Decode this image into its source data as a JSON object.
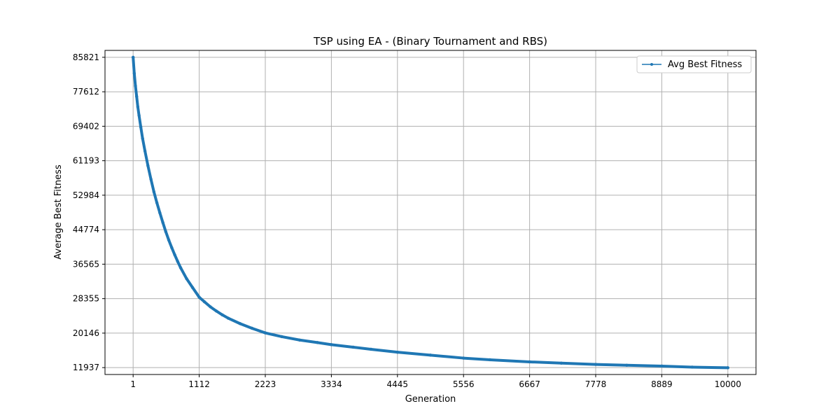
{
  "chart_data": {
    "type": "line",
    "title": "TSP using EA - (Binary Tournament and RBS)",
    "xlabel": "Generation",
    "ylabel": "Average Best Fitness",
    "xlim": [
      -472,
      10473
    ],
    "ylim": [
      10295,
      87463
    ],
    "xticks": [
      1,
      1112,
      2223,
      3334,
      4445,
      5556,
      6667,
      7778,
      8889,
      10000
    ],
    "xtick_labels": [
      "1",
      "1112",
      "2223",
      "3334",
      "4445",
      "5556",
      "6667",
      "7778",
      "8889",
      "10000"
    ],
    "yticks": [
      11937,
      20146,
      28355,
      36565,
      44774,
      52984,
      61193,
      69402,
      77612,
      85821
    ],
    "ytick_labels": [
      "11937",
      "20146",
      "28355",
      "36565",
      "44774",
      "52984",
      "61193",
      "69402",
      "77612",
      "85821"
    ],
    "grid": true,
    "legend_position": "upper-right",
    "colors": {
      "series": "#1f77b4",
      "grid": "#b0b0b0",
      "axes": "#000000"
    },
    "series": [
      {
        "name": "Avg Best Fitness",
        "marker": "dot",
        "x": [
          1,
          20,
          40,
          60,
          80,
          100,
          130,
          160,
          200,
          250,
          300,
          350,
          400,
          450,
          500,
          550,
          600,
          650,
          700,
          750,
          800,
          900,
          1000,
          1112,
          1200,
          1300,
          1400,
          1500,
          1600,
          1800,
          2000,
          2223,
          2500,
          2800,
          3100,
          3334,
          3700,
          4000,
          4445,
          5000,
          5556,
          6000,
          6667,
          7200,
          7778,
          8300,
          8889,
          9400,
          10000
        ],
        "y": [
          85821,
          82000,
          79000,
          76500,
          74000,
          72000,
          69200,
          66500,
          63500,
          60000,
          56800,
          53800,
          51200,
          48800,
          46500,
          44300,
          42300,
          40500,
          38800,
          37200,
          35700,
          33100,
          31000,
          28700,
          27600,
          26400,
          25400,
          24500,
          23700,
          22400,
          21300,
          20200,
          19300,
          18500,
          17900,
          17400,
          16800,
          16300,
          15600,
          14900,
          14200,
          13800,
          13300,
          13000,
          12700,
          12500,
          12300,
          12050,
          11900
        ]
      }
    ]
  }
}
